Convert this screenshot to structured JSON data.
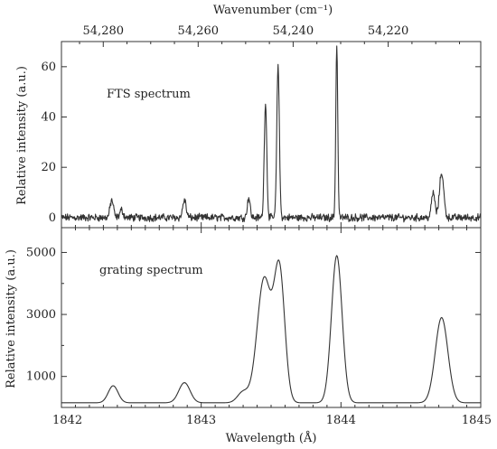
{
  "chart_data": [
    {
      "type": "line",
      "id": "fts",
      "annotation": "FTS spectrum",
      "ylabel": "Relative intensity (a.u.)",
      "ylim": [
        -4,
        70
      ],
      "yticks": [
        0,
        20,
        40,
        60
      ],
      "top_axis_label": "Wavenumber (cm⁻¹)",
      "top_axis_ticks": [
        54280,
        54260,
        54240,
        54220
      ],
      "top_axis_tick_labels": [
        "54,280",
        "54,260",
        "54,240",
        "54,220"
      ],
      "xlim": [
        1842,
        1845
      ],
      "baseline_noise": 1.2,
      "peaks": [
        {
          "x": 1842.36,
          "y": 7,
          "w": 0.012
        },
        {
          "x": 1842.43,
          "y": 3,
          "w": 0.012
        },
        {
          "x": 1842.88,
          "y": 7,
          "w": 0.012
        },
        {
          "x": 1843.34,
          "y": 8,
          "w": 0.01
        },
        {
          "x": 1843.46,
          "y": 46,
          "w": 0.009
        },
        {
          "x": 1843.55,
          "y": 61,
          "w": 0.009
        },
        {
          "x": 1843.97,
          "y": 69,
          "w": 0.007
        },
        {
          "x": 1844.66,
          "y": 10,
          "w": 0.012
        },
        {
          "x": 1844.72,
          "y": 18,
          "w": 0.015
        }
      ]
    },
    {
      "type": "line",
      "id": "grating",
      "annotation": "grating spectrum",
      "ylabel": "Relative intensity (a.u.)",
      "ylim": [
        0,
        5800
      ],
      "yticks": [
        1000,
        3000,
        5000
      ],
      "xlabel": "Wavelength (Å)",
      "xlim": [
        1842,
        1845
      ],
      "xticks": [
        1842,
        1843,
        1844,
        1845
      ],
      "baseline": 150,
      "peaks": [
        {
          "x": 1842.37,
          "y": 550,
          "w": 0.035
        },
        {
          "x": 1842.88,
          "y": 650,
          "w": 0.04
        },
        {
          "x": 1843.3,
          "y": 350,
          "w": 0.04
        },
        {
          "x": 1843.45,
          "y": 4000,
          "w": 0.05
        },
        {
          "x": 1843.56,
          "y": 4200,
          "w": 0.038
        },
        {
          "x": 1843.97,
          "y": 4750,
          "w": 0.038
        },
        {
          "x": 1844.72,
          "y": 2750,
          "w": 0.045
        }
      ]
    }
  ]
}
